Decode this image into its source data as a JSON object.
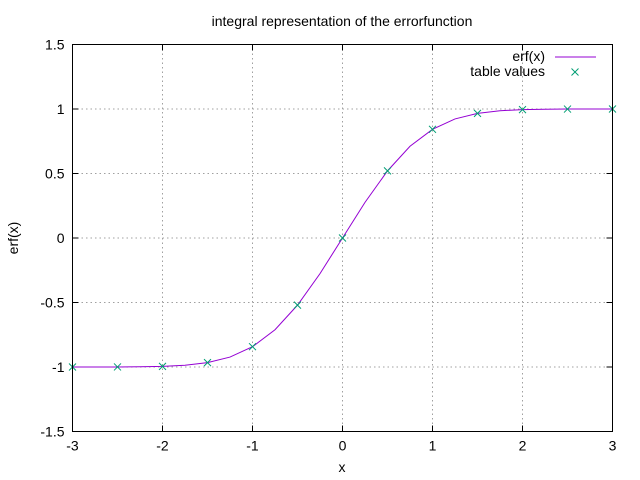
{
  "chart_data": {
    "type": "line",
    "title": "integral representation of the errorfunction",
    "xlabel": "x",
    "ylabel": "erf(x)",
    "xlim": [
      -3,
      3
    ],
    "ylim": [
      -1.5,
      1.5
    ],
    "x_ticks": [
      "-3",
      "-2",
      "-1",
      "0",
      "1",
      "2",
      "3"
    ],
    "y_ticks": [
      "-1.5",
      "-1",
      "-0.5",
      "0",
      "0.5",
      "1",
      "1.5"
    ],
    "grid": true,
    "legend_position": "top-right",
    "series": [
      {
        "name": "erf(x)",
        "style": "line",
        "color": "#9400d3",
        "x": [
          -3.0,
          -2.75,
          -2.5,
          -2.25,
          -2.0,
          -1.75,
          -1.5,
          -1.25,
          -1.0,
          -0.75,
          -0.5,
          -0.25,
          0.0,
          0.25,
          0.5,
          0.75,
          1.0,
          1.25,
          1.5,
          1.75,
          2.0,
          2.25,
          2.5,
          2.75,
          3.0
        ],
        "y": [
          -1.0,
          -0.9999,
          -0.9996,
          -0.9985,
          -0.9953,
          -0.9867,
          -0.9661,
          -0.9229,
          -0.8427,
          -0.7112,
          -0.5205,
          -0.2763,
          0.0,
          0.2763,
          0.5205,
          0.7112,
          0.8427,
          0.9229,
          0.9661,
          0.9867,
          0.9953,
          0.9985,
          0.9996,
          0.9999,
          1.0
        ]
      },
      {
        "name": "table values",
        "style": "points",
        "marker": "x",
        "color": "#009e73",
        "x": [
          -3.0,
          -2.5,
          -2.0,
          -1.5,
          -1.0,
          -0.5,
          0.0,
          0.5,
          1.0,
          1.5,
          2.0,
          2.5,
          3.0
        ],
        "y": [
          -1.0,
          -0.9996,
          -0.9953,
          -0.9661,
          -0.8427,
          -0.5205,
          0.0,
          0.5205,
          0.8427,
          0.9661,
          0.9953,
          0.9996,
          1.0
        ]
      }
    ]
  }
}
